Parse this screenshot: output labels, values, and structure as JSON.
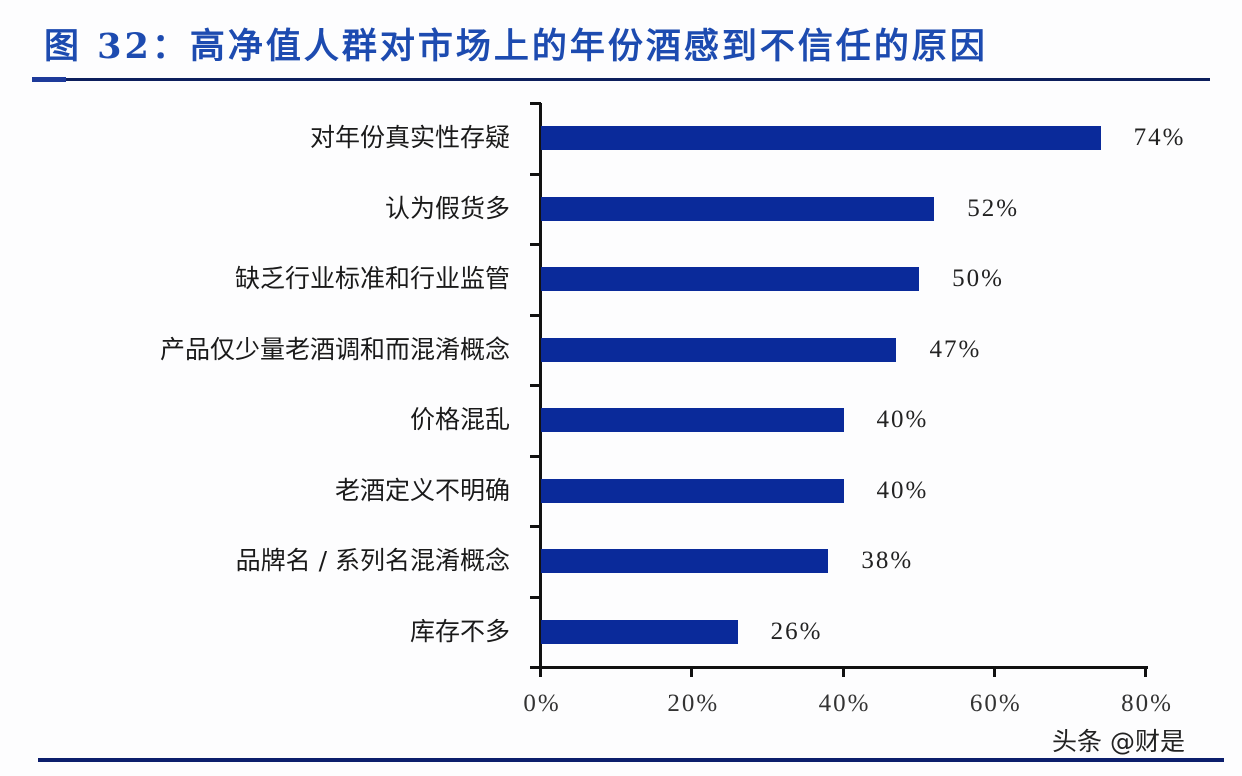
{
  "header": {
    "title": "图 32：高净值人群对市场上的年份酒感到不信任的原因"
  },
  "colors": {
    "title": "#1d4bb0",
    "bar": "#0a2a9a",
    "rule": "#0c1e5c"
  },
  "watermark": "头条 @财是",
  "chart_data": {
    "type": "bar",
    "orientation": "horizontal",
    "title": "高净值人群对市场上的年份酒感到不信任的原因",
    "figure_label": "图 32",
    "categories": [
      "对年份真实性存疑",
      "认为假货多",
      "缺乏行业标准和行业监管",
      "产品仅少量老酒调和而混淆概念",
      "价格混乱",
      "老酒定义不明确",
      "品牌名 / 系列名混淆概念",
      "库存不多"
    ],
    "values": [
      74,
      52,
      50,
      47,
      40,
      40,
      38,
      26
    ],
    "value_labels": [
      "74%",
      "52%",
      "50%",
      "47%",
      "40%",
      "40%",
      "38%",
      "26%"
    ],
    "xlabel": "",
    "ylabel": "",
    "xlim": [
      0,
      80
    ],
    "x_ticks": [
      "0%",
      "20%",
      "40%",
      "60%",
      "80%"
    ],
    "grid": false,
    "legend": null,
    "unit": "%"
  }
}
